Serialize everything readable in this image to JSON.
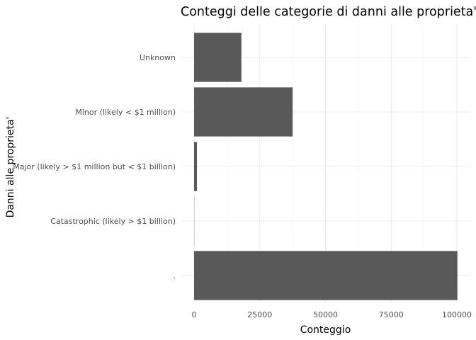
{
  "chart_data": {
    "type": "bar",
    "orientation": "horizontal",
    "title": "Conteggi delle categorie di danni alle proprieta'",
    "xlabel": "Conteggio",
    "ylabel": "Danni alle proprieta'",
    "categories": [
      ".",
      "Catastrophic (likely > $1 billion)",
      "Major (likely > $1 million but < $1 billion)",
      "Minor (likely < $1 million)",
      "Unknown"
    ],
    "values": [
      100200,
      50,
      1100,
      37500,
      18000
    ],
    "xlim": [
      0,
      105000
    ],
    "xticks": [
      0,
      25000,
      50000,
      75000,
      100000
    ],
    "xtick_labels": [
      "0",
      "25000",
      "50000",
      "75000",
      "100000"
    ],
    "bar_color": "#595959",
    "grid": true,
    "theme": "minimal"
  }
}
